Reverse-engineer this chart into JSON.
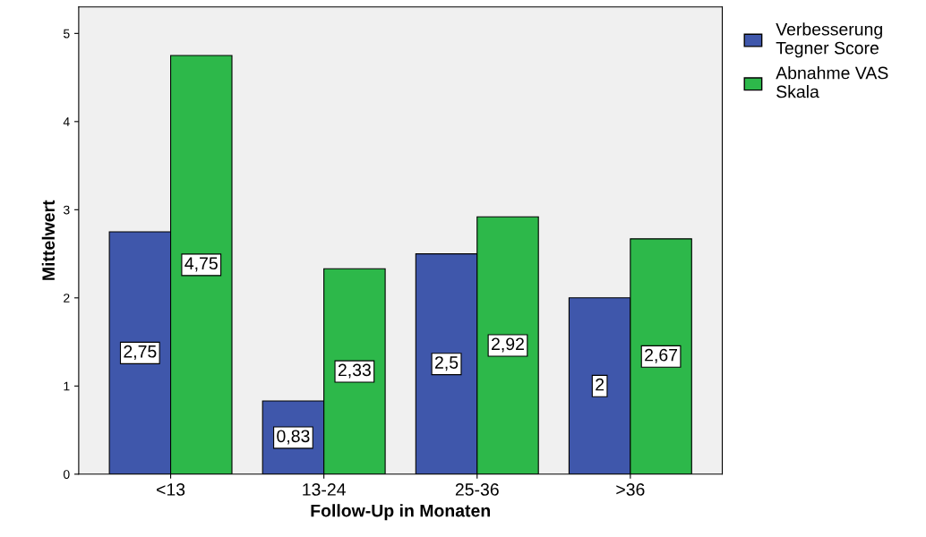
{
  "chart_data": {
    "type": "bar",
    "xlabel": "Follow-Up in Monaten",
    "ylabel": "Mittelwert",
    "categories": [
      "<13",
      "13-24",
      "25-36",
      ">36"
    ],
    "series": [
      {
        "name": "Verbesserung\nTegner Score",
        "color": "#3f57ab",
        "values": [
          2.75,
          0.83,
          2.5,
          2
        ],
        "value_labels": [
          "2,75",
          "0,83",
          "2,5",
          "2"
        ]
      },
      {
        "name": "Abnahme VAS\nSkala",
        "color": "#2db84a",
        "values": [
          4.75,
          2.33,
          2.92,
          2.67
        ],
        "value_labels": [
          "4,75",
          "2,33",
          "2,92",
          "2,67"
        ]
      }
    ],
    "ylim": [
      0,
      5.3
    ],
    "yticks": [
      0,
      1,
      2,
      3,
      4,
      5
    ],
    "grid": false,
    "legend": "top right"
  }
}
